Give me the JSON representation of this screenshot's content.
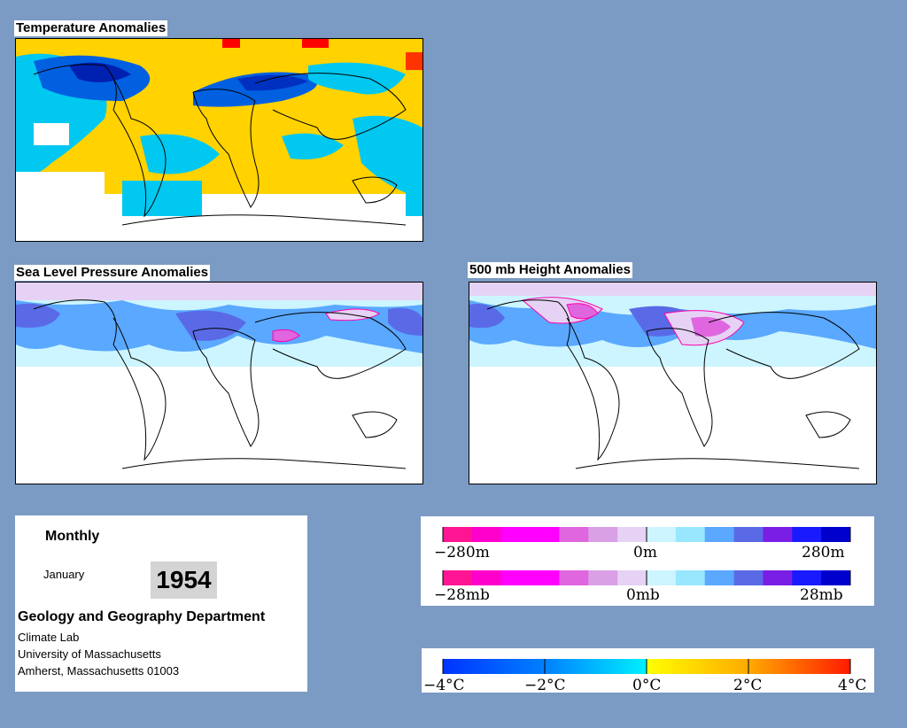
{
  "maps": {
    "temperature": {
      "title": "Temperature Anomalies"
    },
    "slp": {
      "title": "Sea Level Pressure Anomalies"
    },
    "height500": {
      "title": "500 mb Height Anomalies"
    }
  },
  "info": {
    "period": "Monthly",
    "month": "January",
    "year": "1954",
    "department": "Geology and Geography Department",
    "lab": "Climate Lab",
    "university": "University of Massachusetts",
    "address": "Amherst, Massachusetts 01003"
  },
  "legend_height": {
    "labels": [
      "−280m",
      "0m",
      "280m"
    ],
    "colors": [
      "#ff1493",
      "#ff00cc",
      "#ff00ff",
      "#ff00ff",
      "#e066e0",
      "#d9a0e6",
      "#e6d2f5",
      "#ccf5ff",
      "#99e6ff",
      "#5aa8ff",
      "#5a6ae6",
      "#7a1ee6",
      "#1a1aff",
      "#0000cc"
    ]
  },
  "legend_pressure": {
    "labels": [
      "−28mb",
      "0mb",
      "28mb"
    ],
    "colors": [
      "#ff1493",
      "#ff00cc",
      "#ff00ff",
      "#ff00ff",
      "#e066e0",
      "#d9a0e6",
      "#e6d2f5",
      "#ccf5ff",
      "#99e6ff",
      "#5aa8ff",
      "#5a6ae6",
      "#7a1ee6",
      "#1a1aff",
      "#0000cc"
    ]
  },
  "legend_temperature": {
    "labels": [
      "−4°C",
      "−2°C",
      "0°C",
      "2°C",
      "4°C"
    ],
    "colors": [
      "#0033ff",
      "#0080ff",
      "#00c0ff",
      "#00f0ff",
      "#ffff00",
      "#ffcc00",
      "#ff8800",
      "#ff3300"
    ]
  }
}
